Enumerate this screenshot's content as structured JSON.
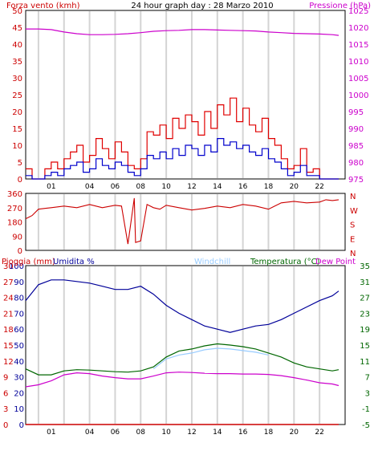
{
  "chart_data": [
    {
      "type": "line",
      "title": "24 hour graph day : 28 Marzo 2010",
      "ylabel_left": "Forza vento (kmh)",
      "ylabel_right": "Pressione (hPa)",
      "x_ticks": [
        "01",
        "04",
        "06",
        "08",
        "10",
        "12",
        "14",
        "16",
        "18",
        "20",
        "22"
      ],
      "x_range": [
        -1,
        24
      ],
      "ylim_left": [
        0,
        50
      ],
      "y_ticks_left": [
        0,
        5,
        10,
        15,
        20,
        25,
        30,
        35,
        40,
        45,
        50
      ],
      "ylim_right": [
        975,
        1025
      ],
      "y_ticks_right": [
        975,
        980,
        985,
        990,
        995,
        1000,
        1005,
        1010,
        1015,
        1020,
        1025
      ],
      "grid": true,
      "series": [
        {
          "color": "#e00000",
          "axis": "left",
          "x": [
            -1,
            -0.5,
            0,
            0.5,
            1,
            1.5,
            2,
            2.5,
            3,
            3.5,
            4,
            4.5,
            5,
            5.5,
            6,
            6.5,
            7,
            7.5,
            8,
            8.5,
            9,
            9.5,
            10,
            10.5,
            11,
            11.5,
            12,
            12.5,
            13,
            13.5,
            14,
            14.5,
            15,
            15.5,
            16,
            16.5,
            17,
            17.5,
            18,
            18.5,
            19,
            19.5,
            20,
            20.5,
            21,
            21.5,
            22,
            22.5,
            23,
            23.5
          ],
          "values": [
            3,
            0,
            0,
            3,
            5,
            3,
            6,
            8,
            10,
            5,
            7,
            12,
            9,
            6,
            11,
            8,
            4,
            3,
            6,
            14,
            13,
            16,
            12,
            18,
            15,
            19,
            17,
            13,
            20,
            15,
            22,
            19,
            24,
            17,
            21,
            16,
            14,
            18,
            12,
            10,
            6,
            3,
            4,
            9,
            2,
            3,
            0,
            0,
            0,
            0
          ]
        },
        {
          "color": "#0000cc",
          "axis": "left",
          "x": [
            -1,
            -0.5,
            0,
            0.5,
            1,
            1.5,
            2,
            2.5,
            3,
            3.5,
            4,
            4.5,
            5,
            5.5,
            6,
            6.5,
            7,
            7.5,
            8,
            8.5,
            9,
            9.5,
            10,
            10.5,
            11,
            11.5,
            12,
            12.5,
            13,
            13.5,
            14,
            14.5,
            15,
            15.5,
            16,
            16.5,
            17,
            17.5,
            18,
            18.5,
            19,
            19.5,
            20,
            20.5,
            21,
            21.5,
            22,
            22.5,
            23,
            23.5
          ],
          "values": [
            1,
            0,
            0,
            1,
            2,
            1,
            3,
            4,
            5,
            2,
            3,
            6,
            4,
            3,
            5,
            4,
            2,
            1,
            3,
            7,
            6,
            8,
            6,
            9,
            7,
            10,
            9,
            7,
            10,
            8,
            12,
            10,
            11,
            9,
            10,
            8,
            7,
            9,
            6,
            5,
            3,
            1,
            2,
            4,
            1,
            1,
            0,
            0,
            0,
            0
          ]
        },
        {
          "color": "#cc00cc",
          "axis": "right",
          "x": [
            -1,
            0,
            1,
            2,
            3,
            4,
            5,
            6,
            7,
            8,
            9,
            10,
            11,
            12,
            13,
            14,
            15,
            16,
            17,
            18,
            19,
            20,
            21,
            22,
            23,
            23.5
          ],
          "values": [
            1019.5,
            1019.5,
            1019.3,
            1018.6,
            1018.1,
            1017.8,
            1017.8,
            1017.9,
            1018.1,
            1018.4,
            1018.8,
            1019.0,
            1019.1,
            1019.3,
            1019.3,
            1019.2,
            1019.1,
            1019.0,
            1018.9,
            1018.6,
            1018.4,
            1018.2,
            1018.1,
            1018.0,
            1017.8,
            1017.6
          ]
        }
      ]
    },
    {
      "type": "line",
      "ylim": [
        0,
        360
      ],
      "y_ticks": [
        0,
        90,
        180,
        270,
        360
      ],
      "right_labels": [
        "N",
        "W",
        "S",
        "E",
        "N"
      ],
      "x_range": [
        -1,
        24
      ],
      "grid": true,
      "series": [
        {
          "color": "#cc0000",
          "x": [
            -1,
            -0.5,
            0,
            0.5,
            1,
            2,
            3,
            4,
            5,
            6,
            6.5,
            7,
            7.5,
            7.6,
            8,
            8.5,
            9,
            9.5,
            10,
            11,
            12,
            13,
            14,
            15,
            16,
            17,
            18,
            18.5,
            19,
            20,
            21,
            22,
            22.5,
            23,
            23.5
          ],
          "values": [
            200,
            220,
            260,
            265,
            270,
            280,
            270,
            290,
            270,
            285,
            280,
            40,
            330,
            50,
            60,
            290,
            270,
            260,
            285,
            270,
            255,
            265,
            280,
            270,
            290,
            280,
            260,
            280,
            300,
            310,
            300,
            305,
            320,
            315,
            320
          ]
        }
      ]
    },
    {
      "type": "line",
      "ylabel_left": "Pioggia (mm)",
      "ylabel_left2": "Umidita %",
      "legend_windchill": "Windchill",
      "ylabel_right": "Temperatura (°C)",
      "ylabel_dewpoint": "Dew Point",
      "x_ticks": [
        "01",
        "04",
        "06",
        "08",
        "10",
        "12",
        "14",
        "16",
        "18",
        "20",
        "22"
      ],
      "x_range": [
        -1,
        24
      ],
      "ylim_rain": [
        0,
        30
      ],
      "y_ticks_rain": [
        0,
        3,
        6,
        9,
        12,
        15,
        18,
        21,
        24,
        27,
        30
      ],
      "ylim_humidity": [
        0,
        100
      ],
      "y_ticks_humidity": [
        0,
        10,
        20,
        30,
        40,
        50,
        60,
        70,
        80,
        90,
        100
      ],
      "ylim_temp": [
        -5,
        35
      ],
      "y_ticks_temp": [
        -5,
        -1,
        3,
        7,
        11,
        15,
        19,
        23,
        27,
        31,
        35
      ],
      "grid": true,
      "series": [
        {
          "name": "Umidita %",
          "color": "#000099",
          "axis": "humidity",
          "x": [
            -1,
            0,
            1,
            2,
            3,
            4,
            5,
            6,
            7,
            8,
            9,
            10,
            11,
            12,
            13,
            14,
            15,
            16,
            17,
            18,
            19,
            20,
            21,
            22,
            23,
            23.5
          ],
          "values": [
            78,
            88,
            91,
            91,
            90,
            89,
            87,
            85,
            85,
            87,
            82,
            75,
            70,
            66,
            62,
            60,
            58,
            60,
            62,
            63,
            66,
            70,
            74,
            78,
            81,
            84
          ]
        },
        {
          "name": "Temperatura (°C)",
          "color": "#006600",
          "axis": "temp",
          "x": [
            -1,
            0,
            1,
            2,
            3,
            4,
            5,
            6,
            7,
            8,
            9,
            10,
            11,
            12,
            13,
            14,
            15,
            16,
            17,
            18,
            19,
            20,
            21,
            22,
            23,
            23.5
          ],
          "values": [
            9,
            7.5,
            7.5,
            8.5,
            8.8,
            8.7,
            8.5,
            8.3,
            8.2,
            8.5,
            9.5,
            12,
            13.5,
            14,
            14.8,
            15.3,
            15,
            14.6,
            14,
            13,
            12,
            10.5,
            9.5,
            9,
            8.5,
            8.8
          ]
        },
        {
          "name": "Windchill",
          "color": "#99ccff",
          "axis": "temp",
          "x": [
            9,
            10,
            11,
            12,
            13,
            14,
            15,
            16,
            17,
            18
          ],
          "values": [
            9,
            11.5,
            12.5,
            13,
            13.8,
            14.2,
            14,
            13.6,
            13.2,
            12.5
          ]
        },
        {
          "name": "Dew Point",
          "color": "#cc00cc",
          "axis": "temp",
          "x": [
            -1,
            0,
            1,
            2,
            3,
            4,
            5,
            6,
            7,
            8,
            9,
            10,
            11,
            12,
            13,
            14,
            15,
            16,
            17,
            18,
            19,
            20,
            21,
            22,
            23,
            23.5
          ],
          "values": [
            4.5,
            5,
            6,
            7.5,
            8,
            7.8,
            7.2,
            6.8,
            6.5,
            6.5,
            7.2,
            8,
            8.2,
            8.1,
            7.9,
            7.8,
            7.8,
            7.7,
            7.7,
            7.6,
            7.3,
            6.8,
            6.2,
            5.5,
            5.2,
            4.8
          ]
        },
        {
          "name": "Pioggia (mm)",
          "color": "#cc0000",
          "axis": "rain",
          "x": [
            -1,
            23.5
          ],
          "values": [
            0,
            0
          ]
        }
      ]
    }
  ]
}
